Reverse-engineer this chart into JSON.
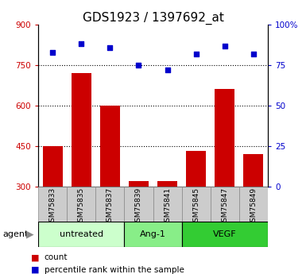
{
  "title": "GDS1923 / 1397692_at",
  "samples": [
    "GSM75833",
    "GSM75835",
    "GSM75837",
    "GSM75839",
    "GSM75841",
    "GSM75845",
    "GSM75847",
    "GSM75849"
  ],
  "count_values": [
    450,
    720,
    600,
    320,
    320,
    430,
    660,
    420
  ],
  "percentile_values": [
    83,
    88,
    86,
    75,
    72,
    82,
    87,
    82
  ],
  "left_ylim": [
    300,
    900
  ],
  "left_yticks": [
    300,
    450,
    600,
    750,
    900
  ],
  "right_ylim": [
    0,
    100
  ],
  "right_yticks": [
    0,
    25,
    50,
    75,
    100
  ],
  "right_yticklabels": [
    "0",
    "25",
    "50",
    "75",
    "100%"
  ],
  "bar_color": "#cc0000",
  "dot_color": "#0000cc",
  "bar_width": 0.7,
  "groups": [
    {
      "label": "untreated",
      "indices": [
        0,
        1,
        2
      ],
      "color": "#ccffcc"
    },
    {
      "label": "Ang-1",
      "indices": [
        3,
        4
      ],
      "color": "#88ee88"
    },
    {
      "label": "VEGF",
      "indices": [
        5,
        6,
        7
      ],
      "color": "#33cc33"
    }
  ],
  "agent_label": "agent",
  "legend_count_label": "count",
  "legend_percentile_label": "percentile rank within the sample",
  "title_fontsize": 11,
  "tick_label_fontsize": 7.5,
  "axis_label_color_left": "#cc0000",
  "axis_label_color_right": "#0000cc",
  "grid_color": "black",
  "sample_bg_color": "#cccccc",
  "sample_cell_edge_color": "#888888"
}
